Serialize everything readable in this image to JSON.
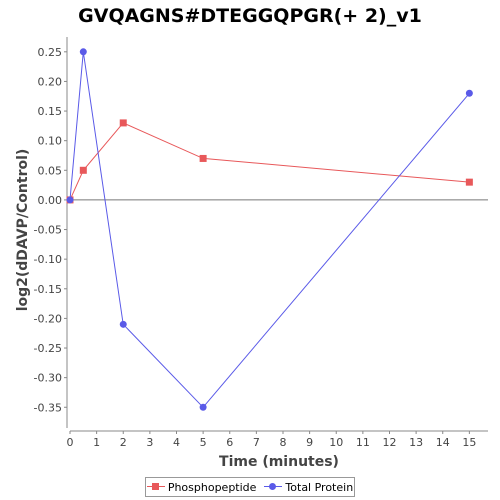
{
  "chart_data": {
    "type": "line",
    "title": "GVQAGNS#DTEGGQPGR(+ 2)_v1",
    "xlabel": "Time (minutes)",
    "ylabel": "log2(dDAVP/Control)",
    "xlim": [
      0,
      15.7
    ],
    "ylim": [
      -0.385,
      0.275
    ],
    "x_ticks": [
      0,
      1,
      2,
      3,
      4,
      5,
      6,
      7,
      8,
      9,
      10,
      11,
      12,
      13,
      14,
      15
    ],
    "y_ticks": [
      0.25,
      0.2,
      0.15,
      0.1,
      0.05,
      0.0,
      -0.05,
      -0.1,
      -0.15,
      -0.2,
      -0.25,
      -0.3,
      -0.35
    ],
    "y_tick_labels": [
      "0.25",
      "0.20",
      "0.15",
      "0.10",
      "0.05",
      "0.00",
      "-0.05",
      "-0.10",
      "-0.15",
      "-0.20",
      "-0.25",
      "-0.30",
      "-0.35"
    ],
    "zero_line": true,
    "grid": false,
    "legend_position": "bottom",
    "series": [
      {
        "name": "Phosphopeptide",
        "color": "#e8585a",
        "marker": "square",
        "x": [
          0,
          0.5,
          2,
          5,
          15
        ],
        "y": [
          0.0,
          0.05,
          0.13,
          0.07,
          0.03
        ]
      },
      {
        "name": "Total Protein",
        "color": "#5a5ae8",
        "marker": "circle",
        "x": [
          0,
          0.5,
          2,
          5,
          15
        ],
        "y": [
          0.0,
          0.25,
          -0.21,
          -0.35,
          0.18
        ]
      }
    ]
  }
}
